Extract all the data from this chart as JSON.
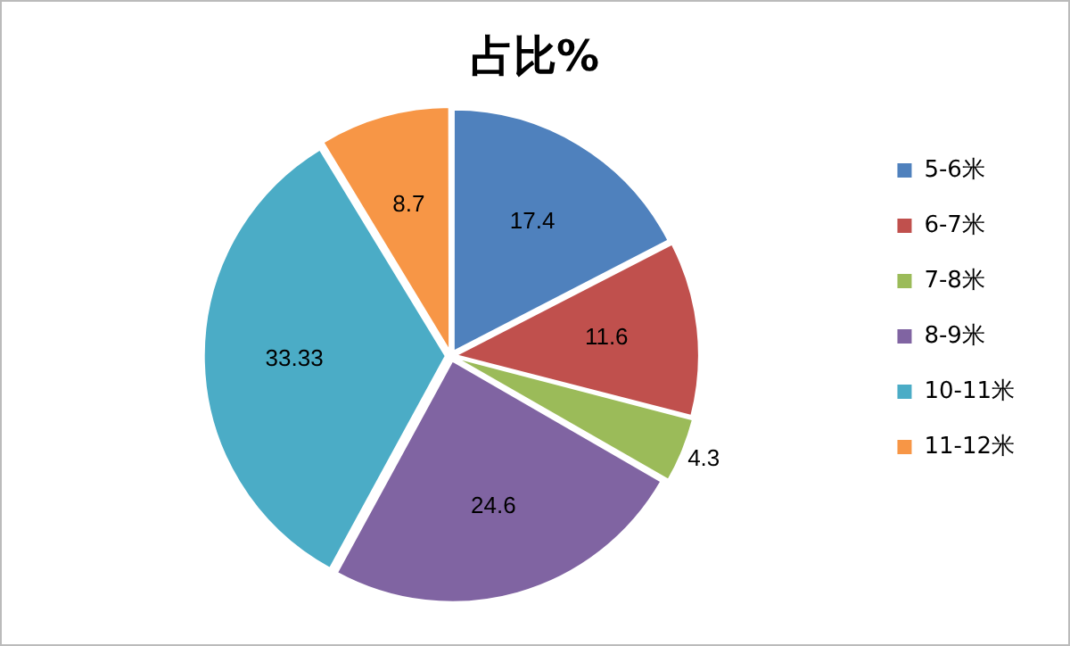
{
  "chart_data": {
    "type": "pie",
    "title": "占比%",
    "categories": [
      "5-6米",
      "6-7米",
      "7-8米",
      "8-9米",
      "10-11米",
      "11-12米"
    ],
    "values": [
      17.4,
      11.6,
      4.3,
      24.6,
      33.33,
      8.7
    ],
    "colors": [
      "#4f81bd",
      "#c0504d",
      "#9bbb59",
      "#8064a2",
      "#4bacc6",
      "#f79646"
    ],
    "data_labels": true,
    "legend": "right"
  }
}
